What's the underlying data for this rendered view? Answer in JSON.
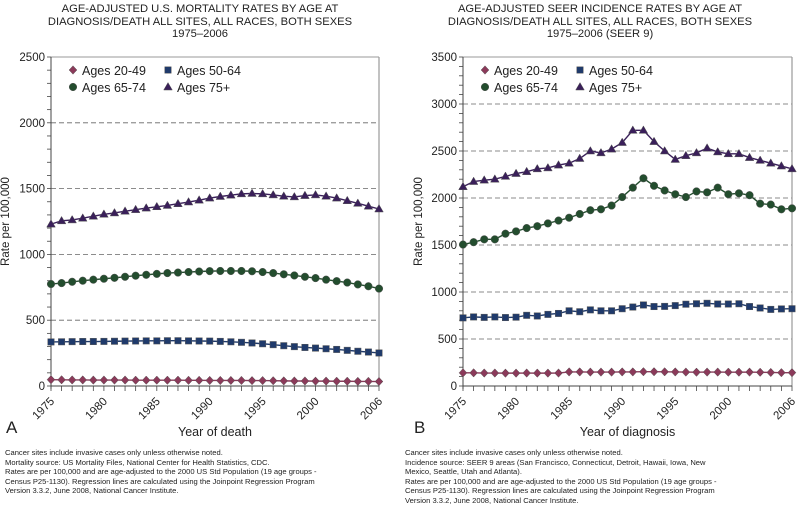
{
  "chart_data": [
    {
      "type": "line",
      "panel_label": "A",
      "title": [
        "AGE-ADJUSTED U.S. MORTALITY RATES BY AGE AT",
        "DIAGNOSIS/DEATH ALL SITES, ALL RACES, BOTH SEXES",
        "1975–2006"
      ],
      "xlabel": "Year of death",
      "ylabel": "Rate per 100,000",
      "xlim": [
        1975,
        2006
      ],
      "ylim": [
        0,
        2500
      ],
      "yticks": [
        0,
        500,
        1000,
        1500,
        2000,
        2500
      ],
      "xticks": [
        1975,
        1980,
        1985,
        1990,
        1995,
        2000,
        2006
      ],
      "grid": "horizontal-dashed",
      "legend": "top-left",
      "x": [
        1975,
        1976,
        1977,
        1978,
        1979,
        1980,
        1981,
        1982,
        1983,
        1984,
        1985,
        1986,
        1987,
        1988,
        1989,
        1990,
        1991,
        1992,
        1993,
        1994,
        1995,
        1996,
        1997,
        1998,
        1999,
        2000,
        2001,
        2002,
        2003,
        2004,
        2005,
        2006
      ],
      "series": [
        {
          "name": "Ages 20-49",
          "marker": "diamond",
          "color": "#8b3a5a",
          "values": [
            48,
            47,
            46,
            46,
            45,
            45,
            45,
            45,
            44,
            44,
            44,
            44,
            44,
            43,
            43,
            42,
            42,
            42,
            42,
            41,
            41,
            40,
            39,
            38,
            38,
            37,
            37,
            36,
            36,
            35,
            35,
            34
          ]
        },
        {
          "name": "Ages 50-64",
          "marker": "square",
          "color": "#1f3a6b",
          "values": [
            335,
            336,
            337,
            338,
            338,
            339,
            340,
            341,
            342,
            343,
            343,
            344,
            344,
            343,
            342,
            341,
            339,
            336,
            332,
            327,
            321,
            314,
            306,
            299,
            293,
            288,
            283,
            278,
            271,
            264,
            258,
            251
          ]
        },
        {
          "name": "Ages 65-74",
          "marker": "circle",
          "color": "#234d2e",
          "values": [
            775,
            782,
            792,
            800,
            808,
            815,
            822,
            830,
            838,
            845,
            852,
            858,
            862,
            866,
            870,
            873,
            874,
            874,
            874,
            872,
            866,
            858,
            849,
            840,
            830,
            820,
            808,
            797,
            786,
            772,
            758,
            740
          ]
        },
        {
          "name": "Ages 75+",
          "marker": "triangle",
          "color": "#3a1f5a",
          "values": [
            1230,
            1255,
            1262,
            1275,
            1290,
            1305,
            1315,
            1328,
            1340,
            1352,
            1362,
            1372,
            1385,
            1398,
            1412,
            1428,
            1440,
            1450,
            1460,
            1463,
            1460,
            1452,
            1442,
            1437,
            1447,
            1452,
            1442,
            1428,
            1408,
            1388,
            1366,
            1345
          ]
        }
      ],
      "footnotes": [
        "Cancer sites include invasive cases only unless otherwise noted.",
        "Mortality source: US Mortality Files, National Center for Health Statistics, CDC.",
        "Rates are per 100,000 and are age-adjusted to the 2000 US Std Population (19 age groups -",
        "Census P25-1130). Regression lines are calculated using the Joinpoint Regression Program",
        "Version 3.3.2, June 2008, National Cancer Institute."
      ]
    },
    {
      "type": "line",
      "panel_label": "B",
      "title": [
        "AGE-ADJUSTED SEER INCIDENCE RATES BY AGE AT",
        "DIAGNOSIS/DEATH ALL SITES, ALL RACES, BOTH SEXES",
        "1975–2006 (SEER 9)"
      ],
      "xlabel": "Year of diagnosis",
      "ylabel": "Rate per 100,000",
      "xlim": [
        1975,
        2006
      ],
      "ylim": [
        0,
        3500
      ],
      "yticks": [
        0,
        500,
        1000,
        1500,
        2000,
        2500,
        3000,
        3500
      ],
      "xticks": [
        1975,
        1980,
        1985,
        1990,
        1995,
        2000,
        2006
      ],
      "grid": "horizontal-dashed",
      "legend": "top-left",
      "x": [
        1975,
        1976,
        1977,
        1978,
        1979,
        1980,
        1981,
        1982,
        1983,
        1984,
        1985,
        1986,
        1987,
        1988,
        1989,
        1990,
        1991,
        1992,
        1993,
        1994,
        1995,
        1996,
        1997,
        1998,
        1999,
        2000,
        2001,
        2002,
        2003,
        2004,
        2005,
        2006
      ],
      "series": [
        {
          "name": "Ages 20-49",
          "marker": "diamond",
          "color": "#8b3a5a",
          "values": [
            140,
            140,
            138,
            138,
            137,
            137,
            138,
            137,
            137,
            138,
            150,
            150,
            148,
            148,
            148,
            150,
            150,
            152,
            152,
            151,
            150,
            148,
            147,
            148,
            148,
            147,
            147,
            148,
            146,
            144,
            142,
            142
          ]
        },
        {
          "name": "Ages 50-64",
          "marker": "square",
          "color": "#1f3a6b",
          "values": [
            725,
            735,
            730,
            735,
            728,
            732,
            752,
            745,
            762,
            772,
            800,
            790,
            810,
            800,
            800,
            822,
            840,
            862,
            845,
            847,
            855,
            870,
            875,
            880,
            872,
            872,
            875,
            845,
            830,
            815,
            820,
            822
          ]
        },
        {
          "name": "Ages 65-74",
          "marker": "circle",
          "color": "#234d2e",
          "values": [
            1505,
            1530,
            1560,
            1560,
            1620,
            1645,
            1680,
            1700,
            1730,
            1760,
            1790,
            1830,
            1870,
            1880,
            1920,
            2010,
            2110,
            2210,
            2130,
            2080,
            2040,
            2010,
            2070,
            2060,
            2110,
            2040,
            2050,
            2030,
            1940,
            1930,
            1880,
            1890
          ]
        },
        {
          "name": "Ages 75+",
          "marker": "triangle",
          "color": "#3a1f5a",
          "values": [
            2120,
            2175,
            2190,
            2200,
            2230,
            2260,
            2280,
            2310,
            2320,
            2350,
            2370,
            2420,
            2500,
            2480,
            2520,
            2590,
            2720,
            2720,
            2600,
            2500,
            2410,
            2450,
            2480,
            2530,
            2490,
            2470,
            2470,
            2430,
            2400,
            2370,
            2340,
            2310
          ]
        }
      ],
      "footnotes": [
        "Cancer sites include invasive cases only unless otherwise noted.",
        "Incidence source: SEER 9 areas (San Francisco, Connecticut, Detroit, Hawaii, Iowa, New",
        "Mexico, Seattle, Utah and Atlanta).",
        "Rates are per 100,000 and are age-adjusted to the 2000 US Std Population (19 age groups -",
        "Census P25-1130). Regression lines are calculated using the Joinpoint Regression Program",
        "Version 3.3.2, June 2008, National Cancer Institute."
      ]
    }
  ]
}
